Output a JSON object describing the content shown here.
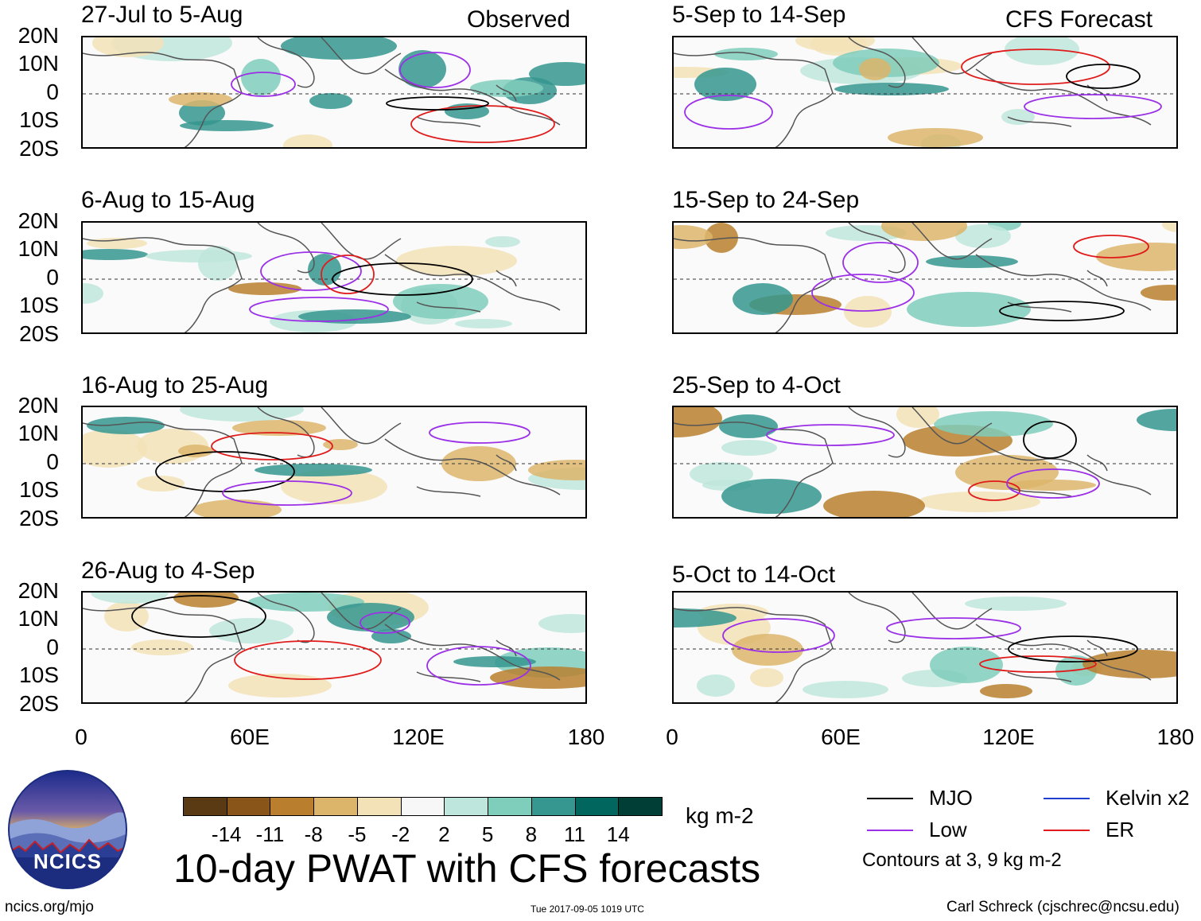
{
  "observed_label": "Observed",
  "forecast_label": "CFS Forecast",
  "lat_labels": [
    "20N",
    "10N",
    "0",
    "10S",
    "20S"
  ],
  "lon_labels": [
    "0",
    "60E",
    "120E",
    "180"
  ],
  "panels_left": [
    {
      "title": "27-Jul to 5-Aug"
    },
    {
      "title": "6-Aug to 15-Aug"
    },
    {
      "title": "16-Aug to 25-Aug"
    },
    {
      "title": "26-Aug to 4-Sep"
    }
  ],
  "panels_right": [
    {
      "title": "5-Sep to 14-Sep"
    },
    {
      "title": "15-Sep to 24-Sep"
    },
    {
      "title": "25-Sep to 4-Oct"
    },
    {
      "title": "5-Oct to 14-Oct"
    }
  ],
  "colorbar": {
    "ticks": [
      "-14",
      "-11",
      "-8",
      "-5",
      "-2",
      "2",
      "5",
      "8",
      "11",
      "14"
    ],
    "colors": [
      "#5a3a12",
      "#8a5518",
      "#b97f2e",
      "#dcb56b",
      "#f3e2b7",
      "#f7f7f7",
      "#bfe6dc",
      "#7fcdbb",
      "#35978f",
      "#01665e",
      "#013f36"
    ],
    "units": "kg m-2"
  },
  "legend": {
    "items": [
      {
        "label": "MJO",
        "color": "#000000"
      },
      {
        "label": "Kelvin x2",
        "color": "#1f3fd1"
      },
      {
        "label": "Low",
        "color": "#9b30e6"
      },
      {
        "label": "ER",
        "color": "#e01b1b"
      }
    ],
    "note": "Contours at 3, 9 kg m-2"
  },
  "main_title": "10-day PWAT with CFS forecasts",
  "logo_text": "NCICS",
  "footer": {
    "url": "ncics.org/mjo",
    "timestamp": "Tue 2017-09-05 1019 UTC",
    "author": "Carl Schreck (cjschrec@ncsu.edu)"
  }
}
